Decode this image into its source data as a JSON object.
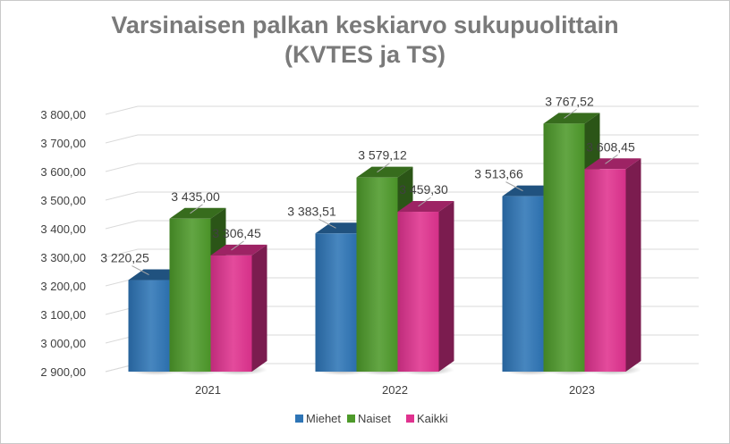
{
  "chart_data": {
    "type": "bar",
    "title_line1": "Varsinaisen palkan keskiarvo sukupuolittain",
    "title_line2": "(KVTES ja TS)",
    "categories": [
      "2021",
      "2022",
      "2023"
    ],
    "series": [
      {
        "name": "Miehet",
        "color": "#2e75b6",
        "values": [
          3220.25,
          3383.51,
          3513.66
        ],
        "labels": [
          "3 220,25",
          "3 383,51",
          "3 513,66"
        ]
      },
      {
        "name": "Naiset",
        "color": "#4e9a2a",
        "values": [
          3435.0,
          3579.12,
          3767.52
        ],
        "labels": [
          "3 435,00",
          "3 579,12",
          "3 767,52"
        ]
      },
      {
        "name": "Kaikki",
        "color": "#e0328f",
        "values": [
          3306.45,
          3459.3,
          3608.45
        ],
        "labels": [
          "3 306,45",
          "3 459,30",
          "3 608,45"
        ]
      }
    ],
    "y_ticks": [
      "2 900,00",
      "3 000,00",
      "3 100,00",
      "3 200,00",
      "3 300,00",
      "3 400,00",
      "3 500,00",
      "3 600,00",
      "3 700,00",
      "3 800,00"
    ],
    "ylim": [
      2900,
      3800
    ],
    "grid": true,
    "legend_position": "bottom"
  }
}
